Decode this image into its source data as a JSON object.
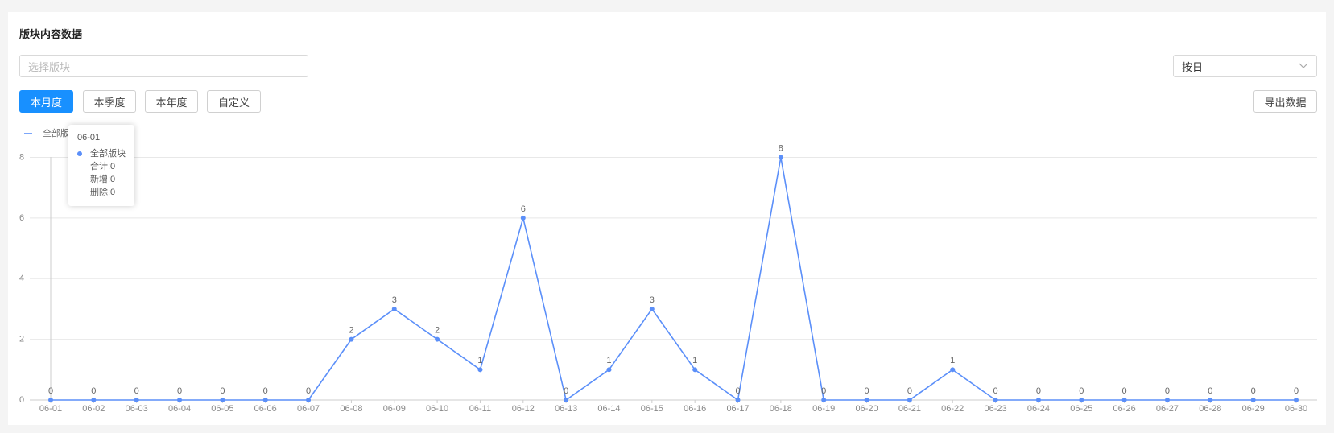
{
  "header": {
    "title": "版块内容数据"
  },
  "filters": {
    "board_placeholder": "选择版块",
    "granularity": "按日",
    "periods": [
      "本月度",
      "本季度",
      "本年度",
      "自定义"
    ],
    "export": "导出数据"
  },
  "tooltip": {
    "items": [
      "合计:0",
      "新增:0",
      "删除:0"
    ]
  },
  "chart_data": {
    "type": "line",
    "x": [
      "06-01",
      "06-02",
      "06-03",
      "06-04",
      "06-05",
      "06-06",
      "06-07",
      "06-08",
      "06-09",
      "06-10",
      "06-11",
      "06-12",
      "06-13",
      "06-14",
      "06-15",
      "06-16",
      "06-17",
      "06-18",
      "06-19",
      "06-20",
      "06-21",
      "06-22",
      "06-23",
      "06-24",
      "06-25",
      "06-26",
      "06-27",
      "06-28",
      "06-29",
      "06-30"
    ],
    "series": [
      {
        "name": "全部版块",
        "color": "#5b8ff9",
        "values": [
          0,
          0,
          0,
          0,
          0,
          0,
          0,
          2,
          3,
          2,
          1,
          6,
          0,
          1,
          3,
          1,
          0,
          8,
          0,
          0,
          0,
          1,
          0,
          0,
          0,
          0,
          0,
          0,
          0,
          0
        ]
      }
    ],
    "ylim": [
      0,
      8
    ],
    "yticks": [
      0,
      2,
      4,
      6,
      8
    ],
    "grid": true
  }
}
